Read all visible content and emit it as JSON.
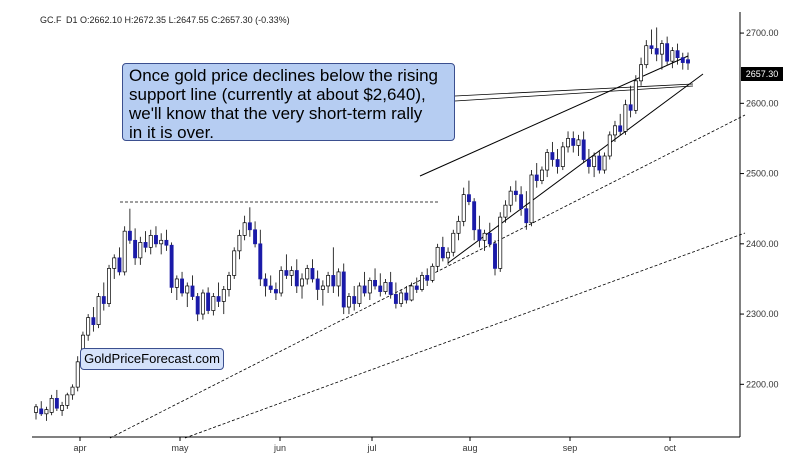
{
  "header": {
    "symbol": "GC.F",
    "interval": "D1",
    "ohlc": "O:2662.10 H:2672.35 L:2647.55 C:2657.30 (-0.33%)"
  },
  "annotation": {
    "text": "Once gold price declines below the rising\nsupport line (currently at about $2,640),\nwe'll know that the very short-term rally\nin it is over."
  },
  "watermark": "GoldPriceForecast.com",
  "last_price_label": "2657.30",
  "colors": {
    "up_candle": "#ffffff",
    "down_candle": "#1a1aa8",
    "outline": "#000000",
    "annotation_bg": "#b6cdf2",
    "price_tag_bg": "#000000"
  },
  "chart_data": {
    "type": "candlestick",
    "title": "",
    "xlabel": "",
    "ylabel": "",
    "x_ticks": [
      "apr",
      "may",
      "jun",
      "jul",
      "aug",
      "sep",
      "oct"
    ],
    "y_ticks": [
      "2200.00",
      "2300.00",
      "2400.00",
      "2500.00",
      "2600.00",
      "2700.00"
    ],
    "ylim": [
      2125,
      2730
    ],
    "grid": false,
    "candles": [
      {
        "o": 2160,
        "h": 2172,
        "l": 2150,
        "c": 2168
      },
      {
        "o": 2165,
        "h": 2176,
        "l": 2155,
        "c": 2158
      },
      {
        "o": 2158,
        "h": 2168,
        "l": 2148,
        "c": 2164
      },
      {
        "o": 2160,
        "h": 2185,
        "l": 2156,
        "c": 2180
      },
      {
        "o": 2180,
        "h": 2192,
        "l": 2162,
        "c": 2166
      },
      {
        "o": 2163,
        "h": 2175,
        "l": 2155,
        "c": 2170
      },
      {
        "o": 2170,
        "h": 2188,
        "l": 2165,
        "c": 2185
      },
      {
        "o": 2185,
        "h": 2200,
        "l": 2178,
        "c": 2196
      },
      {
        "o": 2196,
        "h": 2240,
        "l": 2190,
        "c": 2232
      },
      {
        "o": 2232,
        "h": 2275,
        "l": 2228,
        "c": 2270
      },
      {
        "o": 2270,
        "h": 2300,
        "l": 2262,
        "c": 2295
      },
      {
        "o": 2295,
        "h": 2310,
        "l": 2275,
        "c": 2285
      },
      {
        "o": 2285,
        "h": 2330,
        "l": 2280,
        "c": 2325
      },
      {
        "o": 2325,
        "h": 2345,
        "l": 2305,
        "c": 2315
      },
      {
        "o": 2315,
        "h": 2370,
        "l": 2310,
        "c": 2365
      },
      {
        "o": 2365,
        "h": 2385,
        "l": 2350,
        "c": 2380
      },
      {
        "o": 2380,
        "h": 2395,
        "l": 2355,
        "c": 2360
      },
      {
        "o": 2360,
        "h": 2425,
        "l": 2355,
        "c": 2418
      },
      {
        "o": 2418,
        "h": 2450,
        "l": 2400,
        "c": 2405
      },
      {
        "o": 2405,
        "h": 2422,
        "l": 2370,
        "c": 2380
      },
      {
        "o": 2380,
        "h": 2410,
        "l": 2370,
        "c": 2402
      },
      {
        "o": 2402,
        "h": 2418,
        "l": 2388,
        "c": 2395
      },
      {
        "o": 2395,
        "h": 2420,
        "l": 2385,
        "c": 2412
      },
      {
        "o": 2412,
        "h": 2425,
        "l": 2395,
        "c": 2400
      },
      {
        "o": 2400,
        "h": 2415,
        "l": 2385,
        "c": 2405
      },
      {
        "o": 2405,
        "h": 2420,
        "l": 2390,
        "c": 2398
      },
      {
        "o": 2398,
        "h": 2402,
        "l": 2330,
        "c": 2338
      },
      {
        "o": 2338,
        "h": 2355,
        "l": 2320,
        "c": 2350
      },
      {
        "o": 2350,
        "h": 2360,
        "l": 2325,
        "c": 2330
      },
      {
        "o": 2330,
        "h": 2345,
        "l": 2310,
        "c": 2340
      },
      {
        "o": 2340,
        "h": 2355,
        "l": 2320,
        "c": 2325
      },
      {
        "o": 2325,
        "h": 2330,
        "l": 2290,
        "c": 2300
      },
      {
        "o": 2300,
        "h": 2335,
        "l": 2292,
        "c": 2330
      },
      {
        "o": 2330,
        "h": 2338,
        "l": 2300,
        "c": 2305
      },
      {
        "o": 2305,
        "h": 2330,
        "l": 2298,
        "c": 2325
      },
      {
        "o": 2325,
        "h": 2345,
        "l": 2310,
        "c": 2318
      },
      {
        "o": 2318,
        "h": 2340,
        "l": 2300,
        "c": 2335
      },
      {
        "o": 2335,
        "h": 2360,
        "l": 2325,
        "c": 2355
      },
      {
        "o": 2355,
        "h": 2395,
        "l": 2350,
        "c": 2390
      },
      {
        "o": 2390,
        "h": 2420,
        "l": 2378,
        "c": 2412
      },
      {
        "o": 2412,
        "h": 2440,
        "l": 2405,
        "c": 2430
      },
      {
        "o": 2430,
        "h": 2452,
        "l": 2410,
        "c": 2420
      },
      {
        "o": 2420,
        "h": 2432,
        "l": 2395,
        "c": 2400
      },
      {
        "o": 2400,
        "h": 2420,
        "l": 2340,
        "c": 2350
      },
      {
        "o": 2350,
        "h": 2358,
        "l": 2325,
        "c": 2340
      },
      {
        "o": 2340,
        "h": 2355,
        "l": 2330,
        "c": 2335
      },
      {
        "o": 2335,
        "h": 2345,
        "l": 2320,
        "c": 2330
      },
      {
        "o": 2330,
        "h": 2368,
        "l": 2325,
        "c": 2362
      },
      {
        "o": 2362,
        "h": 2385,
        "l": 2350,
        "c": 2355
      },
      {
        "o": 2355,
        "h": 2368,
        "l": 2340,
        "c": 2362
      },
      {
        "o": 2362,
        "h": 2378,
        "l": 2330,
        "c": 2340
      },
      {
        "o": 2340,
        "h": 2358,
        "l": 2322,
        "c": 2350
      },
      {
        "o": 2350,
        "h": 2370,
        "l": 2342,
        "c": 2365
      },
      {
        "o": 2365,
        "h": 2378,
        "l": 2345,
        "c": 2350
      },
      {
        "o": 2350,
        "h": 2362,
        "l": 2320,
        "c": 2335
      },
      {
        "o": 2335,
        "h": 2348,
        "l": 2312,
        "c": 2340
      },
      {
        "o": 2340,
        "h": 2360,
        "l": 2330,
        "c": 2355
      },
      {
        "o": 2355,
        "h": 2395,
        "l": 2330,
        "c": 2340
      },
      {
        "o": 2340,
        "h": 2365,
        "l": 2325,
        "c": 2360
      },
      {
        "o": 2360,
        "h": 2372,
        "l": 2300,
        "c": 2310
      },
      {
        "o": 2310,
        "h": 2330,
        "l": 2300,
        "c": 2325
      },
      {
        "o": 2325,
        "h": 2340,
        "l": 2305,
        "c": 2315
      },
      {
        "o": 2315,
        "h": 2345,
        "l": 2310,
        "c": 2340
      },
      {
        "o": 2340,
        "h": 2360,
        "l": 2325,
        "c": 2330
      },
      {
        "o": 2330,
        "h": 2352,
        "l": 2320,
        "c": 2348
      },
      {
        "o": 2348,
        "h": 2365,
        "l": 2335,
        "c": 2340
      },
      {
        "o": 2340,
        "h": 2358,
        "l": 2325,
        "c": 2332
      },
      {
        "o": 2332,
        "h": 2350,
        "l": 2328,
        "c": 2345
      },
      {
        "o": 2345,
        "h": 2360,
        "l": 2322,
        "c": 2328
      },
      {
        "o": 2328,
        "h": 2345,
        "l": 2308,
        "c": 2315
      },
      {
        "o": 2315,
        "h": 2335,
        "l": 2310,
        "c": 2330
      },
      {
        "o": 2330,
        "h": 2340,
        "l": 2315,
        "c": 2320
      },
      {
        "o": 2320,
        "h": 2345,
        "l": 2318,
        "c": 2340
      },
      {
        "o": 2340,
        "h": 2352,
        "l": 2330,
        "c": 2335
      },
      {
        "o": 2335,
        "h": 2360,
        "l": 2332,
        "c": 2355
      },
      {
        "o": 2355,
        "h": 2365,
        "l": 2340,
        "c": 2348
      },
      {
        "o": 2348,
        "h": 2372,
        "l": 2345,
        "c": 2368
      },
      {
        "o": 2368,
        "h": 2400,
        "l": 2360,
        "c": 2395
      },
      {
        "o": 2395,
        "h": 2410,
        "l": 2375,
        "c": 2380
      },
      {
        "o": 2380,
        "h": 2395,
        "l": 2370,
        "c": 2388
      },
      {
        "o": 2388,
        "h": 2420,
        "l": 2382,
        "c": 2415
      },
      {
        "o": 2415,
        "h": 2440,
        "l": 2405,
        "c": 2432
      },
      {
        "o": 2432,
        "h": 2480,
        "l": 2425,
        "c": 2470
      },
      {
        "o": 2470,
        "h": 2490,
        "l": 2455,
        "c": 2460
      },
      {
        "o": 2460,
        "h": 2465,
        "l": 2405,
        "c": 2420
      },
      {
        "o": 2420,
        "h": 2440,
        "l": 2395,
        "c": 2405
      },
      {
        "o": 2405,
        "h": 2420,
        "l": 2390,
        "c": 2415
      },
      {
        "o": 2415,
        "h": 2430,
        "l": 2395,
        "c": 2400
      },
      {
        "o": 2400,
        "h": 2405,
        "l": 2355,
        "c": 2365
      },
      {
        "o": 2365,
        "h": 2445,
        "l": 2360,
        "c": 2438
      },
      {
        "o": 2438,
        "h": 2462,
        "l": 2430,
        "c": 2455
      },
      {
        "o": 2455,
        "h": 2482,
        "l": 2445,
        "c": 2475
      },
      {
        "o": 2475,
        "h": 2490,
        "l": 2460,
        "c": 2470
      },
      {
        "o": 2470,
        "h": 2482,
        "l": 2440,
        "c": 2450
      },
      {
        "o": 2450,
        "h": 2475,
        "l": 2420,
        "c": 2430
      },
      {
        "o": 2430,
        "h": 2505,
        "l": 2425,
        "c": 2498
      },
      {
        "o": 2498,
        "h": 2515,
        "l": 2480,
        "c": 2490
      },
      {
        "o": 2490,
        "h": 2510,
        "l": 2485,
        "c": 2505
      },
      {
        "o": 2505,
        "h": 2535,
        "l": 2495,
        "c": 2530
      },
      {
        "o": 2530,
        "h": 2545,
        "l": 2510,
        "c": 2520
      },
      {
        "o": 2520,
        "h": 2535,
        "l": 2500,
        "c": 2510
      },
      {
        "o": 2510,
        "h": 2545,
        "l": 2505,
        "c": 2538
      },
      {
        "o": 2538,
        "h": 2560,
        "l": 2530,
        "c": 2550
      },
      {
        "o": 2550,
        "h": 2560,
        "l": 2530,
        "c": 2540
      },
      {
        "o": 2540,
        "h": 2555,
        "l": 2525,
        "c": 2548
      },
      {
        "o": 2548,
        "h": 2560,
        "l": 2515,
        "c": 2520
      },
      {
        "o": 2520,
        "h": 2535,
        "l": 2500,
        "c": 2510
      },
      {
        "o": 2510,
        "h": 2530,
        "l": 2495,
        "c": 2525
      },
      {
        "o": 2525,
        "h": 2532,
        "l": 2500,
        "c": 2505
      },
      {
        "o": 2505,
        "h": 2530,
        "l": 2500,
        "c": 2525
      },
      {
        "o": 2525,
        "h": 2560,
        "l": 2520,
        "c": 2555
      },
      {
        "o": 2555,
        "h": 2575,
        "l": 2545,
        "c": 2568
      },
      {
        "o": 2568,
        "h": 2585,
        "l": 2555,
        "c": 2560
      },
      {
        "o": 2560,
        "h": 2605,
        "l": 2555,
        "c": 2598
      },
      {
        "o": 2598,
        "h": 2625,
        "l": 2580,
        "c": 2590
      },
      {
        "o": 2590,
        "h": 2640,
        "l": 2585,
        "c": 2632
      },
      {
        "o": 2632,
        "h": 2665,
        "l": 2625,
        "c": 2655
      },
      {
        "o": 2655,
        "h": 2690,
        "l": 2650,
        "c": 2682
      },
      {
        "o": 2682,
        "h": 2705,
        "l": 2670,
        "c": 2678
      },
      {
        "o": 2678,
        "h": 2708,
        "l": 2660,
        "c": 2670
      },
      {
        "o": 2670,
        "h": 2690,
        "l": 2648,
        "c": 2685
      },
      {
        "o": 2685,
        "h": 2695,
        "l": 2655,
        "c": 2660
      },
      {
        "o": 2660,
        "h": 2680,
        "l": 2650,
        "c": 2675
      },
      {
        "o": 2675,
        "h": 2685,
        "l": 2655,
        "c": 2665
      },
      {
        "o": 2665,
        "h": 2672,
        "l": 2648,
        "c": 2658
      },
      {
        "o": 2662.1,
        "h": 2672.35,
        "l": 2647.55,
        "c": 2657.3
      }
    ]
  }
}
